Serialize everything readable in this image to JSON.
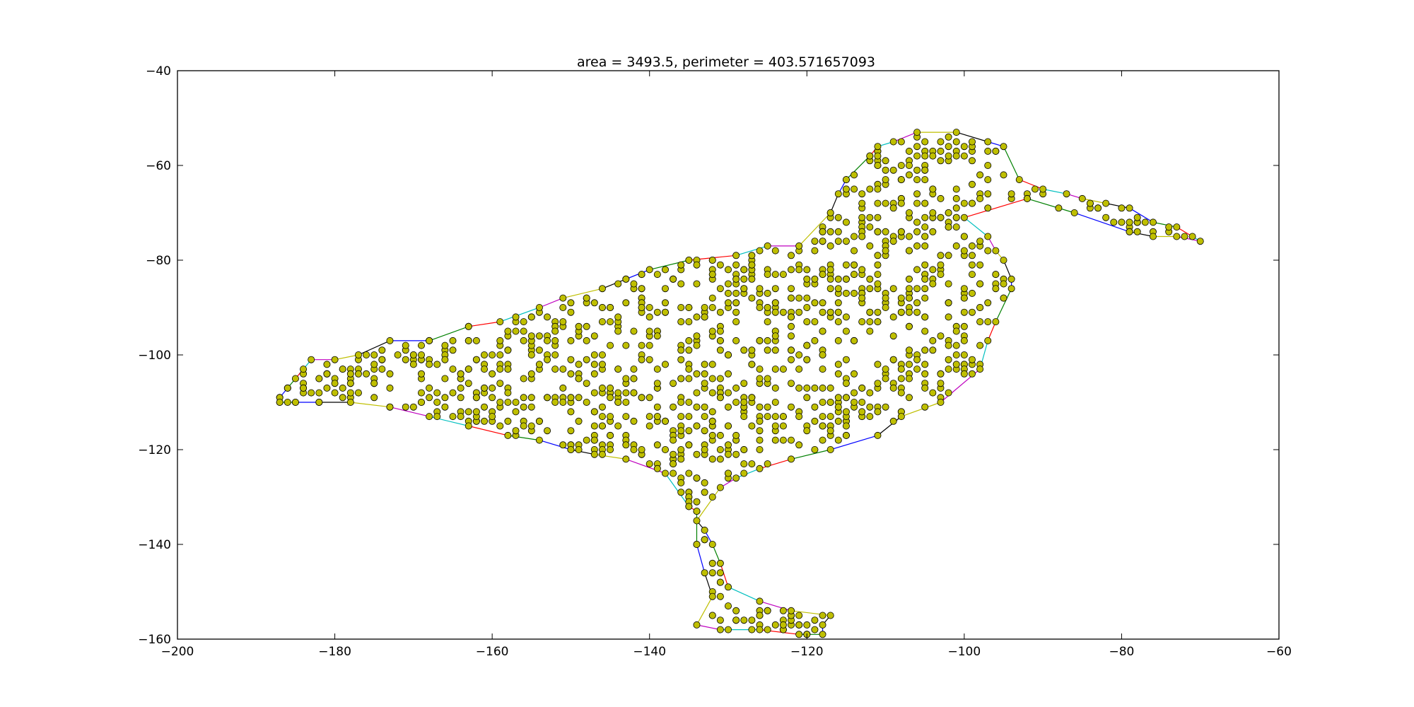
{
  "chart_data": {
    "type": "scatter",
    "title": "area = 3493.5, perimeter = 403.571657093",
    "xlabel": "",
    "ylabel": "",
    "xlim": [
      -200,
      -60
    ],
    "ylim": [
      -160,
      -40
    ],
    "xticks": [
      "−200",
      "−180",
      "−160",
      "−140",
      "−120",
      "−100",
      "−80",
      "−60"
    ],
    "yticks": [
      "−40",
      "−60",
      "−80",
      "−100",
      "−120",
      "−140",
      "−160"
    ],
    "grid": false,
    "marker_color": "#bfbf00",
    "marker_edge": "#000000",
    "edge_colors": [
      "#0000ff",
      "#008000",
      "#ff0000",
      "#00bfbf",
      "#bf00bf",
      "#bfbf00",
      "#000000"
    ],
    "boundary": [
      [
        -187,
        -109
      ],
      [
        -186,
        -107
      ],
      [
        -185,
        -105
      ],
      [
        -184,
        -103
      ],
      [
        -183,
        -101
      ],
      [
        -180,
        -101
      ],
      [
        -177,
        -100
      ],
      [
        -173,
        -97
      ],
      [
        -168,
        -97
      ],
      [
        -163,
        -94
      ],
      [
        -159,
        -93
      ],
      [
        -154,
        -90
      ],
      [
        -151,
        -88
      ],
      [
        -146,
        -86
      ],
      [
        -143,
        -84
      ],
      [
        -140,
        -82
      ],
      [
        -135,
        -80
      ],
      [
        -129,
        -79
      ],
      [
        -125,
        -77
      ],
      [
        -121,
        -77
      ],
      [
        -117,
        -70
      ],
      [
        -116,
        -66
      ],
      [
        -115,
        -63
      ],
      [
        -112,
        -58
      ],
      [
        -111,
        -56
      ],
      [
        -109,
        -55
      ],
      [
        -106,
        -53
      ],
      [
        -101,
        -53
      ],
      [
        -97,
        -55
      ],
      [
        -95,
        -56
      ],
      [
        -93,
        -63
      ],
      [
        -90,
        -65
      ],
      [
        -87,
        -66
      ],
      [
        -85,
        -67
      ],
      [
        -82,
        -68
      ],
      [
        -79,
        -69
      ],
      [
        -76,
        -72
      ],
      [
        -73,
        -73
      ],
      [
        -71,
        -75
      ],
      [
        -70,
        -76
      ],
      [
        -73,
        -75
      ],
      [
        -76,
        -75
      ],
      [
        -79,
        -74
      ],
      [
        -86,
        -70
      ],
      [
        -92,
        -67
      ],
      [
        -100,
        -71
      ],
      [
        -97,
        -75
      ],
      [
        -96,
        -78
      ],
      [
        -95,
        -80
      ],
      [
        -94,
        -84
      ],
      [
        -94,
        -86
      ],
      [
        -96,
        -93
      ],
      [
        -97,
        -97
      ],
      [
        -98,
        -103
      ],
      [
        -103,
        -110
      ],
      [
        -108,
        -113
      ],
      [
        -111,
        -117
      ],
      [
        -117,
        -120
      ],
      [
        -122,
        -122
      ],
      [
        -126,
        -124
      ],
      [
        -129,
        -126
      ],
      [
        -131,
        -128
      ],
      [
        -134,
        -135
      ],
      [
        -133,
        -137
      ],
      [
        -132,
        -140
      ],
      [
        -131,
        -144
      ],
      [
        -130,
        -149
      ],
      [
        -126,
        -152
      ],
      [
        -122,
        -154
      ],
      [
        -117,
        -155
      ],
      [
        -118,
        -157
      ],
      [
        -118,
        -159
      ],
      [
        -121,
        -159
      ],
      [
        -126,
        -158
      ],
      [
        -131,
        -158
      ],
      [
        -134,
        -157
      ],
      [
        -132,
        -151
      ],
      [
        -133,
        -146
      ],
      [
        -134,
        -140
      ],
      [
        -134,
        -133
      ],
      [
        -135,
        -132
      ],
      [
        -138,
        -125
      ],
      [
        -143,
        -122
      ],
      [
        -147,
        -121
      ],
      [
        -150,
        -120
      ],
      [
        -154,
        -118
      ],
      [
        -158,
        -117
      ],
      [
        -163,
        -115
      ],
      [
        -168,
        -113
      ],
      [
        -173,
        -111
      ],
      [
        -178,
        -110
      ],
      [
        -182,
        -110
      ],
      [
        -185,
        -110
      ],
      [
        -187,
        -110
      ]
    ],
    "interior_count": 1200,
    "seed": 12345
  }
}
